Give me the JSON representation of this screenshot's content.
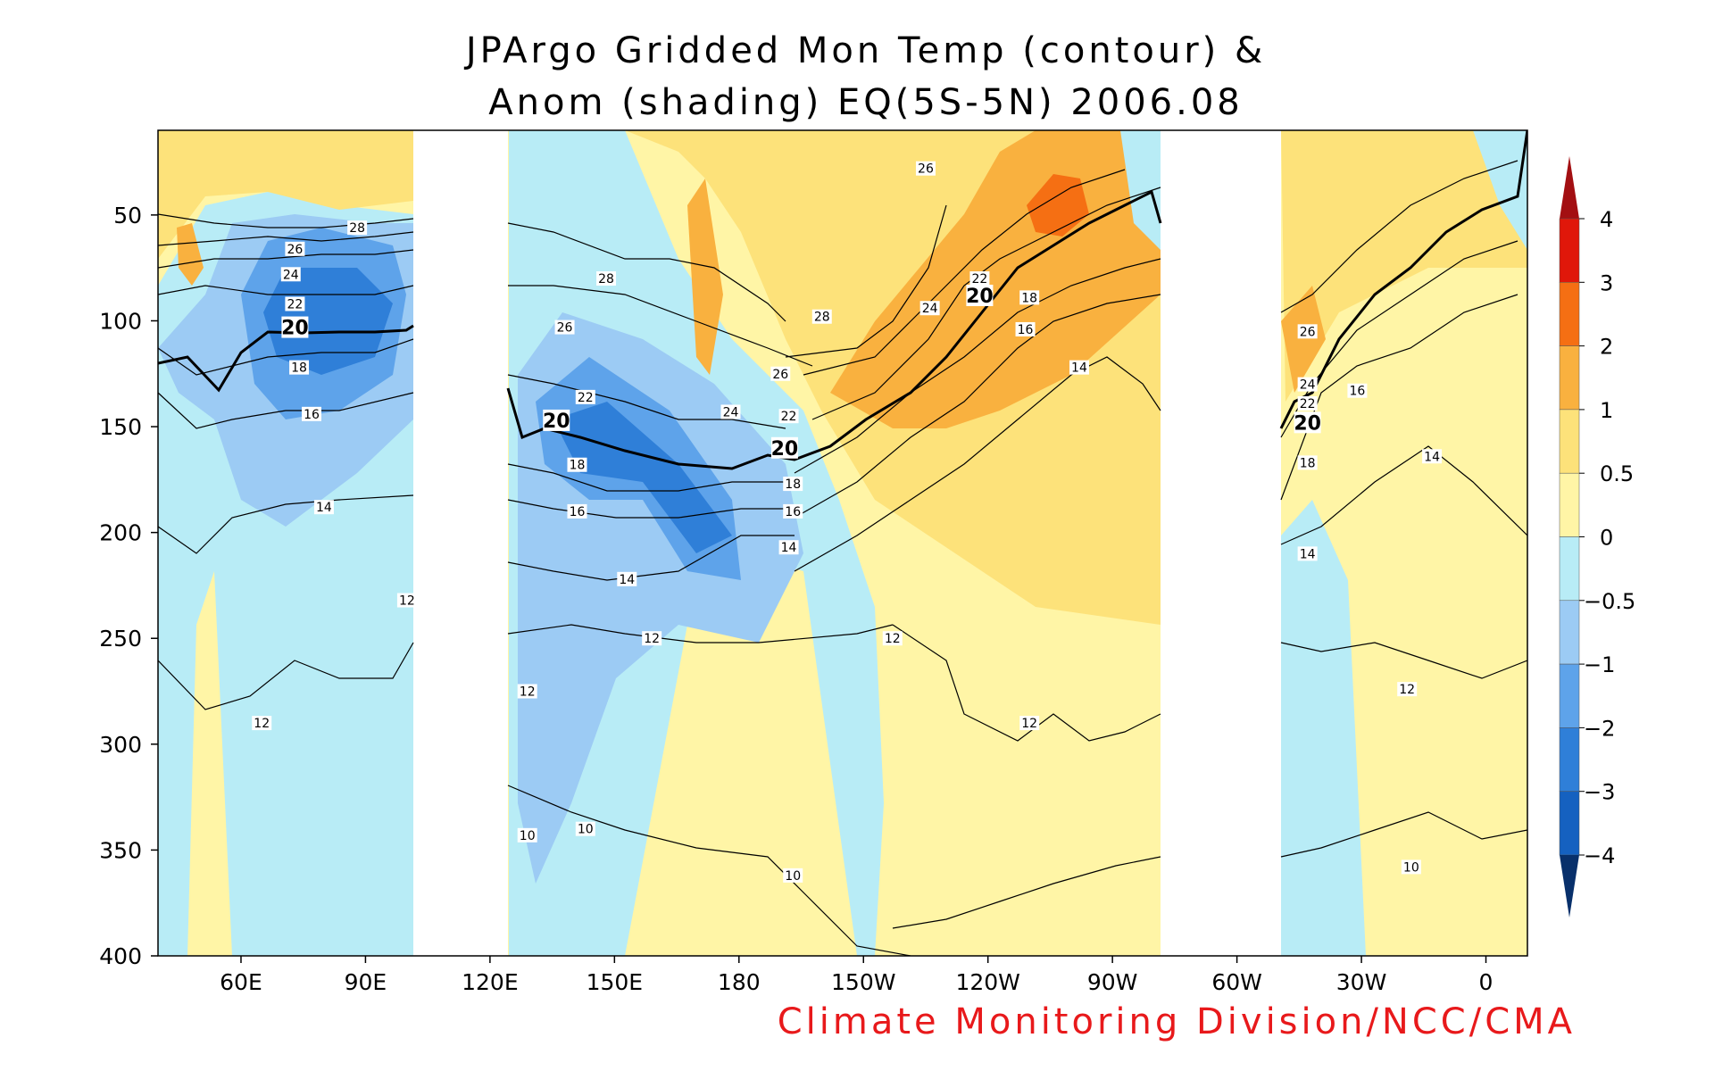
{
  "chart_data": {
    "type": "heatmap",
    "title_line1": "JPArgo Gridded Mon Temp (contour) &",
    "title_line2": "Anom (shading) EQ(5S-5N) 2006.08",
    "credit": "Climate Monitoring Division/NCC/CMA",
    "x_ticks": [
      "60E",
      "90E",
      "120E",
      "150E",
      "180",
      "150W",
      "120W",
      "90W",
      "60W",
      "30W",
      "0"
    ],
    "x_tick_lon": [
      60,
      90,
      120,
      150,
      180,
      210,
      240,
      270,
      300,
      330,
      360
    ],
    "xlim_lon": [
      40,
      370
    ],
    "y_ticks": [
      50,
      100,
      150,
      200,
      250,
      300,
      350,
      400
    ],
    "ylim_depth": [
      10,
      400
    ],
    "missing_lon_ranges": [
      [
        102,
        125
      ],
      [
        280,
        310
      ]
    ],
    "colorbar_levels": [
      "-4",
      "-3",
      "-2",
      "-1",
      "-0.5",
      "0",
      "0.5",
      "1",
      "2",
      "3",
      "4"
    ],
    "colorbar_colors": [
      "#08306b",
      "#1561c0",
      "#2f7fd8",
      "#5ea3ea",
      "#9ccbf4",
      "#b8ecf6",
      "#fff5a6",
      "#fde27a",
      "#f9b13f",
      "#f56f13",
      "#e0170a",
      "#a30f12"
    ],
    "contour_levels": [
      10,
      12,
      14,
      16,
      18,
      20,
      22,
      24,
      26,
      28
    ],
    "contour_labels": [
      {
        "text": "28",
        "lon": 88,
        "depth": 56
      },
      {
        "text": "26",
        "lon": 73,
        "depth": 66
      },
      {
        "text": "24",
        "lon": 72,
        "depth": 78
      },
      {
        "text": "22",
        "lon": 73,
        "depth": 92
      },
      {
        "text": "20",
        "lon": 73,
        "depth": 103
      },
      {
        "text": "18",
        "lon": 74,
        "depth": 122
      },
      {
        "text": "16",
        "lon": 77,
        "depth": 144
      },
      {
        "text": "14",
        "lon": 80,
        "depth": 188
      },
      {
        "text": "12",
        "lon": 100,
        "depth": 232
      },
      {
        "text": "12",
        "lon": 65,
        "depth": 290
      },
      {
        "text": "28",
        "lon": 148,
        "depth": 80
      },
      {
        "text": "26",
        "lon": 138,
        "depth": 103
      },
      {
        "text": "22",
        "lon": 143,
        "depth": 136
      },
      {
        "text": "20",
        "lon": 136,
        "depth": 147
      },
      {
        "text": "18",
        "lon": 141,
        "depth": 168
      },
      {
        "text": "16",
        "lon": 141,
        "depth": 190
      },
      {
        "text": "14",
        "lon": 153,
        "depth": 222
      },
      {
        "text": "12",
        "lon": 159,
        "depth": 250
      },
      {
        "text": "12",
        "lon": 129,
        "depth": 275
      },
      {
        "text": "10",
        "lon": 129,
        "depth": 343
      },
      {
        "text": "10",
        "lon": 143,
        "depth": 340
      },
      {
        "text": "24",
        "lon": 178,
        "depth": 143
      },
      {
        "text": "22",
        "lon": 192,
        "depth": 145
      },
      {
        "text": "20",
        "lon": 191,
        "depth": 160
      },
      {
        "text": "18",
        "lon": 193,
        "depth": 177
      },
      {
        "text": "16",
        "lon": 193,
        "depth": 190
      },
      {
        "text": "14",
        "lon": 192,
        "depth": 207
      },
      {
        "text": "26",
        "lon": 190,
        "depth": 125
      },
      {
        "text": "28",
        "lon": 200,
        "depth": 98
      },
      {
        "text": "12",
        "lon": 217,
        "depth": 250
      },
      {
        "text": "10",
        "lon": 193,
        "depth": 362
      },
      {
        "text": "26",
        "lon": 225,
        "depth": 28
      },
      {
        "text": "24",
        "lon": 226,
        "depth": 94
      },
      {
        "text": "22",
        "lon": 238,
        "depth": 80
      },
      {
        "text": "20",
        "lon": 238,
        "depth": 88
      },
      {
        "text": "18",
        "lon": 250,
        "depth": 89
      },
      {
        "text": "16",
        "lon": 249,
        "depth": 104
      },
      {
        "text": "14",
        "lon": 262,
        "depth": 122
      },
      {
        "text": "12",
        "lon": 250,
        "depth": 290
      },
      {
        "text": "26",
        "lon": 317,
        "depth": 105
      },
      {
        "text": "24",
        "lon": 317,
        "depth": 130
      },
      {
        "text": "22",
        "lon": 317,
        "depth": 139
      },
      {
        "text": "20",
        "lon": 317,
        "depth": 148
      },
      {
        "text": "18",
        "lon": 317,
        "depth": 167
      },
      {
        "text": "16",
        "lon": 329,
        "depth": 133
      },
      {
        "text": "14",
        "lon": 317,
        "depth": 210
      },
      {
        "text": "14",
        "lon": 347,
        "depth": 164
      },
      {
        "text": "12",
        "lon": 341,
        "depth": 274
      },
      {
        "text": "10",
        "lon": 342,
        "depth": 358
      }
    ]
  }
}
